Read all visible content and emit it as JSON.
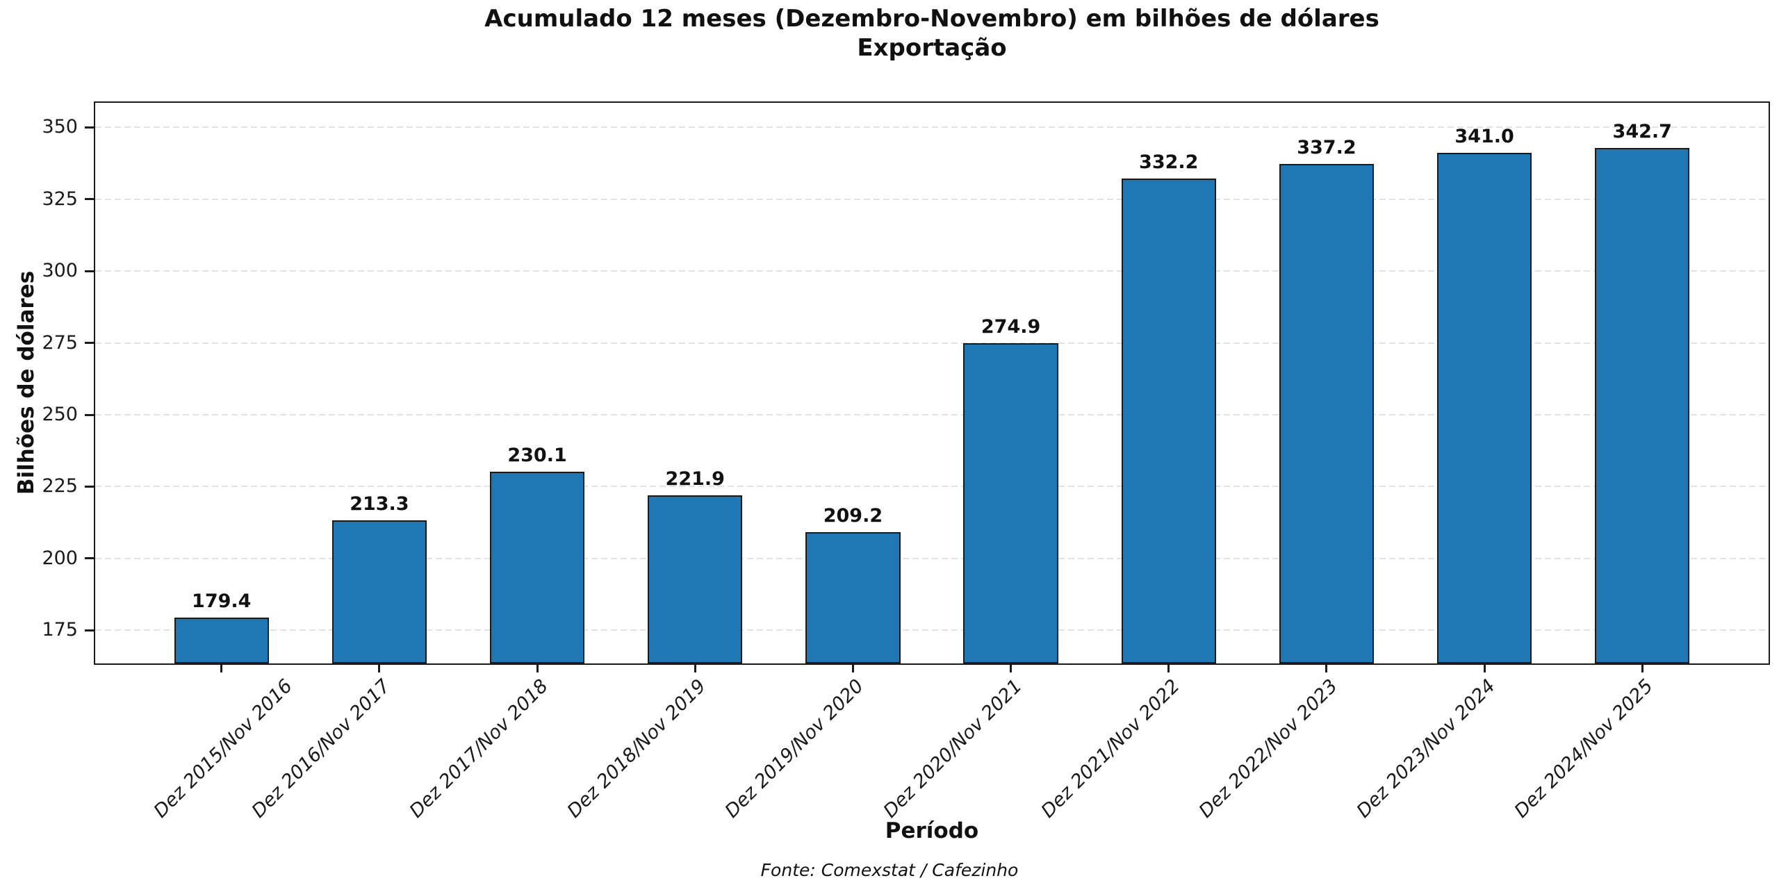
{
  "title": {
    "line1": "Acumulado 12 meses (Dezembro-Novembro) em bilhões de dólares",
    "line2": "Exportação"
  },
  "axes": {
    "ylabel": "Bilhões de dólares",
    "xlabel": "Período"
  },
  "source_caption": "Fonte: Comexstat / Cafezinho",
  "chart_data": {
    "type": "bar",
    "title": "Acumulado 12 meses (Dezembro-Novembro) em bilhões de dólares",
    "subtitle": "Exportação",
    "xlabel": "Período",
    "ylabel": "Bilhões de dólares",
    "categories": [
      "Dez 2015/Nov 2016",
      "Dez 2016/Nov 2017",
      "Dez 2017/Nov 2018",
      "Dez 2018/Nov 2019",
      "Dez 2019/Nov 2020",
      "Dez 2020/Nov 2021",
      "Dez 2021/Nov 2022",
      "Dez 2022/Nov 2023",
      "Dez 2023/Nov 2024",
      "Dez 2024/Nov 2025"
    ],
    "values": [
      179.4,
      213.3,
      230.1,
      221.9,
      209.2,
      274.9,
      332.2,
      337.2,
      341.0,
      342.7
    ],
    "value_label_decimals": 1,
    "yticks": [
      175,
      200,
      225,
      250,
      275,
      300,
      325,
      350
    ],
    "ylim": [
      163.5,
      358.5
    ],
    "xlim": [
      -0.8,
      9.8
    ],
    "bar_width_units": 0.6,
    "grid": "horizontal dashed",
    "legend": "none",
    "colors": {
      "bar_fill": "#1f77b4",
      "bar_edge": "#1a1a1a",
      "gridline": "#e2e2e2",
      "spine": "#1a1a1a",
      "text": "#111111",
      "background": "#ffffff"
    }
  }
}
